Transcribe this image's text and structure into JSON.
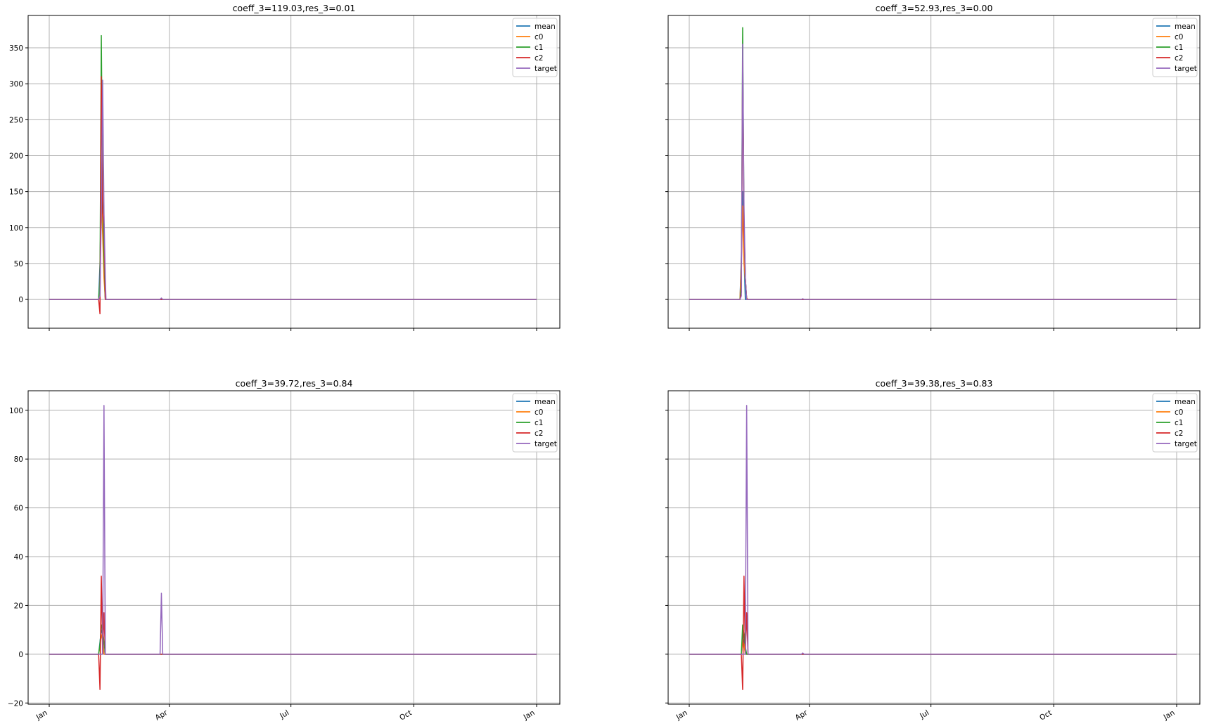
{
  "figure": {
    "layout": "2x2 grid of line charts",
    "shared_y_per_row": true,
    "shared_x": true
  },
  "series_colors": {
    "mean": "#1f77b4",
    "c0": "#ff7f0e",
    "c1": "#2ca02c",
    "c2": "#d62728",
    "target": "#9467bd"
  },
  "chart_data": [
    {
      "type": "line",
      "title": "coeff_3=119.03,res_3=0.01",
      "x_ticks": [
        "Jan",
        "Apr",
        "Jul",
        "Oct",
        "Jan"
      ],
      "x_tick_labels_visible": false,
      "x_domain_days": [
        0,
        365
      ],
      "x_tick_days": [
        0,
        90,
        181,
        273,
        365
      ],
      "ylim": [
        -40,
        395
      ],
      "y_ticks": [
        "0",
        "50",
        "100",
        "150",
        "200",
        "250",
        "300",
        "350"
      ],
      "y_tick_values": [
        0,
        50,
        100,
        150,
        200,
        250,
        300,
        350
      ],
      "y_tick_labels_visible": true,
      "grid": true,
      "legend": {
        "position": "top-right",
        "entries": [
          "mean",
          "c0",
          "c1",
          "c2",
          "target"
        ]
      },
      "series": [
        {
          "name": "mean",
          "points": [
            [
              0,
              0
            ],
            [
              37,
              0
            ],
            [
              38,
              50
            ],
            [
              39,
              150
            ],
            [
              40,
              100
            ],
            [
              41,
              40
            ],
            [
              42,
              0
            ],
            [
              365,
              0
            ]
          ]
        },
        {
          "name": "c0",
          "points": [
            [
              0,
              0
            ],
            [
              37,
              0
            ],
            [
              38,
              20
            ],
            [
              39,
              140
            ],
            [
              40,
              90
            ],
            [
              41,
              30
            ],
            [
              42,
              0
            ],
            [
              365,
              0
            ]
          ]
        },
        {
          "name": "c1",
          "points": [
            [
              0,
              0
            ],
            [
              37,
              0
            ],
            [
              38,
              30
            ],
            [
              39,
              367
            ],
            [
              40,
              140
            ],
            [
              41,
              60
            ],
            [
              42,
              0
            ],
            [
              365,
              0
            ]
          ]
        },
        {
          "name": "c2",
          "points": [
            [
              0,
              0
            ],
            [
              37,
              0
            ],
            [
              38,
              -20
            ],
            [
              39,
              310
            ],
            [
              40,
              120
            ],
            [
              41,
              105
            ],
            [
              42,
              0
            ],
            [
              365,
              0
            ]
          ]
        },
        {
          "name": "target",
          "points": [
            [
              0,
              0
            ],
            [
              37,
              0
            ],
            [
              38,
              5
            ],
            [
              39,
              120
            ],
            [
              40,
              305
            ],
            [
              41,
              120
            ],
            [
              42,
              30
            ],
            [
              42.5,
              0
            ],
            [
              83,
              0
            ],
            [
              84,
              2
            ],
            [
              85,
              0
            ],
            [
              365,
              0
            ]
          ]
        }
      ]
    },
    {
      "type": "line",
      "title": "coeff_3=52.93,res_3=0.00",
      "x_ticks": [
        "Jan",
        "Apr",
        "Jul",
        "Oct",
        "Jan"
      ],
      "x_tick_labels_visible": false,
      "x_domain_days": [
        0,
        365
      ],
      "x_tick_days": [
        0,
        90,
        181,
        273,
        365
      ],
      "ylim": [
        -40,
        395
      ],
      "y_ticks": [
        "0",
        "50",
        "100",
        "150",
        "200",
        "250",
        "300",
        "350"
      ],
      "y_tick_values": [
        0,
        50,
        100,
        150,
        200,
        250,
        300,
        350
      ],
      "y_tick_labels_visible": false,
      "grid": true,
      "legend": {
        "position": "top-right",
        "entries": [
          "mean",
          "c0",
          "c1",
          "c2",
          "target"
        ]
      },
      "series": [
        {
          "name": "mean",
          "points": [
            [
              0,
              0
            ],
            [
              38,
              0
            ],
            [
              39,
              60
            ],
            [
              40,
              150
            ],
            [
              41,
              60
            ],
            [
              42,
              0
            ],
            [
              365,
              0
            ]
          ]
        },
        {
          "name": "c0",
          "points": [
            [
              0,
              0
            ],
            [
              38,
              0
            ],
            [
              39,
              50
            ],
            [
              40,
              130
            ],
            [
              41,
              50
            ],
            [
              43,
              2
            ],
            [
              44,
              0
            ],
            [
              365,
              0
            ]
          ]
        },
        {
          "name": "c1",
          "points": [
            [
              0,
              0
            ],
            [
              38,
              0
            ],
            [
              39,
              20
            ],
            [
              40,
              378
            ],
            [
              41,
              110
            ],
            [
              42,
              30
            ],
            [
              43,
              0
            ],
            [
              365,
              0
            ]
          ]
        },
        {
          "name": "c2",
          "points": [
            [
              0,
              0
            ],
            [
              38,
              0
            ],
            [
              39,
              10
            ],
            [
              40,
              330
            ],
            [
              41,
              100
            ],
            [
              42,
              30
            ],
            [
              43,
              0
            ],
            [
              365,
              0
            ]
          ]
        },
        {
          "name": "target",
          "points": [
            [
              0,
              0
            ],
            [
              38,
              0
            ],
            [
              39,
              5
            ],
            [
              40,
              355
            ],
            [
              41,
              130
            ],
            [
              42,
              30
            ],
            [
              43,
              0
            ],
            [
              84,
              0
            ],
            [
              85,
              1
            ],
            [
              86,
              0
            ],
            [
              365,
              0
            ]
          ]
        }
      ]
    },
    {
      "type": "line",
      "title": "coeff_3=39.72,res_3=0.84",
      "x_ticks": [
        "Jan",
        "Apr",
        "Jul",
        "Oct",
        "Jan"
      ],
      "x_tick_labels_visible": true,
      "x_domain_days": [
        0,
        365
      ],
      "x_tick_days": [
        0,
        90,
        181,
        273,
        365
      ],
      "ylim": [
        -20.5,
        108
      ],
      "y_ticks": [
        "−20",
        "0",
        "20",
        "40",
        "60",
        "80",
        "100"
      ],
      "y_tick_values": [
        -20,
        0,
        20,
        40,
        60,
        80,
        100
      ],
      "y_tick_labels_visible": true,
      "grid": true,
      "legend": {
        "position": "top-right",
        "entries": [
          "mean",
          "c0",
          "c1",
          "c2",
          "target"
        ]
      },
      "series": [
        {
          "name": "mean",
          "points": [
            [
              0,
              0
            ],
            [
              37,
              0
            ],
            [
              38,
              5
            ],
            [
              39,
              10
            ],
            [
              40,
              8
            ],
            [
              41,
              0
            ],
            [
              365,
              0
            ]
          ]
        },
        {
          "name": "c0",
          "points": [
            [
              0,
              0
            ],
            [
              37,
              0
            ],
            [
              38,
              3
            ],
            [
              39,
              8
            ],
            [
              40,
              6
            ],
            [
              41,
              0
            ],
            [
              365,
              0
            ]
          ]
        },
        {
          "name": "c1",
          "points": [
            [
              0,
              0
            ],
            [
              37,
              0
            ],
            [
              38,
              4
            ],
            [
              39,
              12
            ],
            [
              40,
              10
            ],
            [
              41,
              5
            ],
            [
              42,
              0
            ],
            [
              365,
              0
            ]
          ]
        },
        {
          "name": "c2",
          "points": [
            [
              0,
              0
            ],
            [
              37,
              0
            ],
            [
              38,
              -14.5
            ],
            [
              39,
              32
            ],
            [
              40,
              0
            ],
            [
              41,
              17
            ],
            [
              42,
              0
            ],
            [
              365,
              0
            ]
          ]
        },
        {
          "name": "target",
          "points": [
            [
              0,
              0
            ],
            [
              40,
              0
            ],
            [
              41,
              102
            ],
            [
              42,
              0
            ],
            [
              83,
              0
            ],
            [
              84,
              25
            ],
            [
              85,
              0
            ],
            [
              365,
              0
            ]
          ]
        }
      ]
    },
    {
      "type": "line",
      "title": "coeff_3=39.38,res_3=0.83",
      "x_ticks": [
        "Jan",
        "Apr",
        "Jul",
        "Oct",
        "Jan"
      ],
      "x_tick_labels_visible": true,
      "x_domain_days": [
        0,
        365
      ],
      "x_tick_days": [
        0,
        90,
        181,
        273,
        365
      ],
      "ylim": [
        -20.5,
        108
      ],
      "y_ticks": [
        "−20",
        "0",
        "20",
        "40",
        "60",
        "80",
        "100"
      ],
      "y_tick_values": [
        -20,
        0,
        20,
        40,
        60,
        80,
        100
      ],
      "y_tick_labels_visible": false,
      "grid": true,
      "legend": {
        "position": "top-right",
        "entries": [
          "mean",
          "c0",
          "c1",
          "c2",
          "target"
        ]
      },
      "series": [
        {
          "name": "mean",
          "points": [
            [
              0,
              0
            ],
            [
              39,
              0
            ],
            [
              40,
              8
            ],
            [
              41,
              5
            ],
            [
              42,
              0
            ],
            [
              365,
              0
            ]
          ]
        },
        {
          "name": "c0",
          "points": [
            [
              0,
              0
            ],
            [
              39,
              0
            ],
            [
              40,
              6
            ],
            [
              41,
              4
            ],
            [
              42,
              0
            ],
            [
              365,
              0
            ]
          ]
        },
        {
          "name": "c1",
          "points": [
            [
              0,
              0
            ],
            [
              39,
              0
            ],
            [
              40,
              12
            ],
            [
              41,
              8
            ],
            [
              42,
              3
            ],
            [
              43,
              0
            ],
            [
              365,
              0
            ]
          ]
        },
        {
          "name": "c2",
          "points": [
            [
              0,
              0
            ],
            [
              39,
              0
            ],
            [
              40,
              -14.5
            ],
            [
              41,
              32
            ],
            [
              42,
              0
            ],
            [
              43,
              17
            ],
            [
              44,
              0
            ],
            [
              365,
              0
            ]
          ]
        },
        {
          "name": "target",
          "points": [
            [
              0,
              0
            ],
            [
              42,
              0
            ],
            [
              43,
              102
            ],
            [
              44,
              0
            ],
            [
              84,
              0
            ],
            [
              85,
              0.5
            ],
            [
              86,
              0
            ],
            [
              365,
              0
            ]
          ]
        }
      ]
    }
  ]
}
